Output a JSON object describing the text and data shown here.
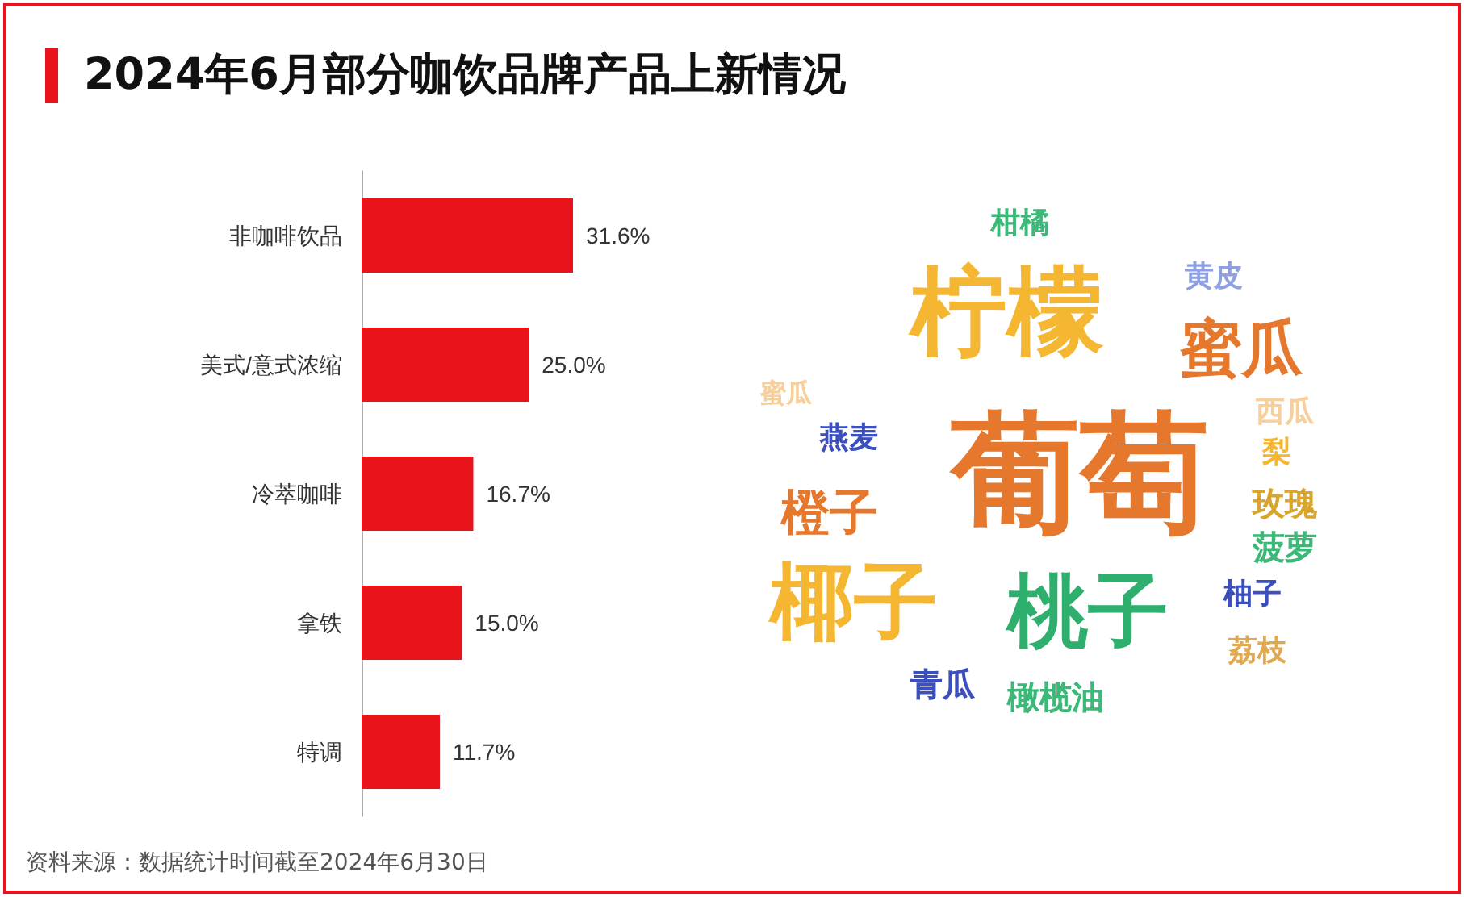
{
  "chart_data": [
    {
      "type": "bar",
      "title": "2024年6月部分咖饮品牌产品上新情况",
      "orientation": "horizontal",
      "categories": [
        "非咖啡饮品",
        "美式/意式浓缩",
        "冷萃咖啡",
        "拿铁",
        "特调"
      ],
      "values": [
        31.6,
        25.0,
        16.7,
        15.0,
        11.7
      ],
      "value_labels": [
        "31.6%",
        "25.0%",
        "16.7%",
        "15.0%",
        "11.7%"
      ],
      "color": "#e8131b",
      "annotations": [
        "资料来源：数据统计时间截至2024年6月30日"
      ]
    },
    {
      "type": "other",
      "annotations": [
        "柑橘",
        "柠檬",
        "黄皮",
        "蜜瓜",
        "蜜瓜",
        "燕麦",
        "葡萄",
        "西瓜",
        "梨",
        "橙子",
        "玫瑰",
        "菠萝",
        "椰子",
        "桃子",
        "柚子",
        "荔枝",
        "青瓜",
        "橄榄油"
      ]
    }
  ]
}
